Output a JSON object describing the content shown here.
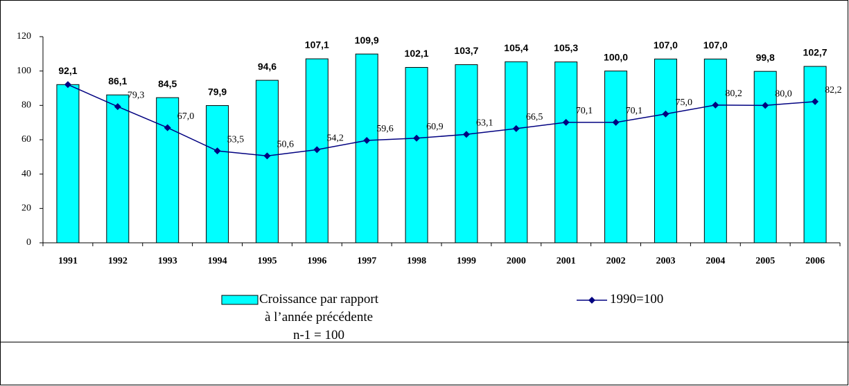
{
  "chart_data": {
    "type": "bar",
    "categories": [
      "1991",
      "1992",
      "1993",
      "1994",
      "1995",
      "1996",
      "1997",
      "1998",
      "1999",
      "2000",
      "2001",
      "2002",
      "2003",
      "2004",
      "2005",
      "2006"
    ],
    "series": [
      {
        "name": "Croissance par rapport\nà l’année précédente\nn-1 = 100",
        "type": "bar",
        "color": "#00ffff",
        "values": [
          92.1,
          86.1,
          84.5,
          79.9,
          94.6,
          107.1,
          109.9,
          102.1,
          103.7,
          105.4,
          105.3,
          100.0,
          107.0,
          107.0,
          99.8,
          102.7
        ],
        "value_labels": [
          "92,1",
          "86,1",
          "84,5",
          "79,9",
          "94,6",
          "107,1",
          "109,9",
          "102,1",
          "103,7",
          "105,4",
          "105,3",
          "100,0",
          "107,0",
          "107,0",
          "99,8",
          "102,7"
        ]
      },
      {
        "name": "1990=100",
        "type": "line",
        "color": "#000080",
        "values": [
          92.1,
          79.3,
          67.0,
          53.5,
          50.6,
          54.2,
          59.6,
          60.9,
          63.1,
          66.5,
          70.1,
          70.1,
          75.0,
          80.2,
          80.0,
          82.2
        ],
        "value_labels": [
          null,
          "79,3",
          "67,0",
          "53,5",
          "50,6",
          "54,2",
          "59,6",
          "60,9",
          "63,1",
          "66,5",
          "70,1",
          "70,1",
          "75,0",
          "80,2",
          "80,0",
          "82,2"
        ]
      }
    ],
    "ylim": [
      0,
      120
    ],
    "yticks": [
      0,
      20,
      40,
      60,
      80,
      100,
      120
    ]
  }
}
